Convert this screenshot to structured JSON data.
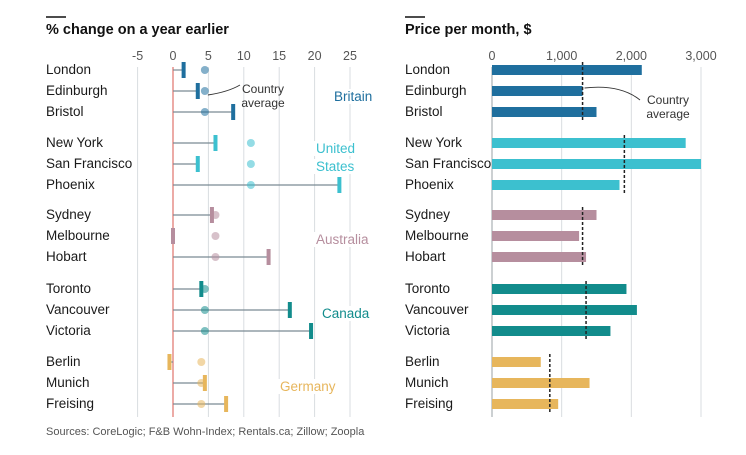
{
  "chart_data": [
    {
      "type": "dot-range",
      "title": "% change on a year earlier",
      "xlim": [
        -5,
        25
      ],
      "ticks": [
        -5,
        0,
        5,
        10,
        15,
        20,
        25
      ],
      "annotation": "Country average",
      "groups": [
        {
          "name": "Britain",
          "color": "#1f6f9e",
          "avg": 4.5,
          "cities": [
            {
              "name": "London",
              "value": 1.5
            },
            {
              "name": "Edinburgh",
              "value": 3.5
            },
            {
              "name": "Bristol",
              "value": 8.5
            }
          ]
        },
        {
          "name": "United States",
          "color": "#3cc0cf",
          "avg": 11.0,
          "cities": [
            {
              "name": "New York",
              "value": 6.0
            },
            {
              "name": "San Francisco",
              "value": 3.5
            },
            {
              "name": "Phoenix",
              "value": 23.5
            }
          ]
        },
        {
          "name": "Australia",
          "color": "#b68e9e",
          "avg": 6.0,
          "cities": [
            {
              "name": "Sydney",
              "value": 5.5
            },
            {
              "name": "Melbourne",
              "value": 0.0
            },
            {
              "name": "Hobart",
              "value": 13.5
            }
          ]
        },
        {
          "name": "Canada",
          "color": "#128c8c",
          "avg": 4.5,
          "cities": [
            {
              "name": "Toronto",
              "value": 4.0
            },
            {
              "name": "Vancouver",
              "value": 16.5
            },
            {
              "name": "Victoria",
              "value": 19.5
            }
          ]
        },
        {
          "name": "Germany",
          "color": "#e7b65c",
          "avg": 4.0,
          "cities": [
            {
              "name": "Berlin",
              "value": -0.5
            },
            {
              "name": "Munich",
              "value": 4.5
            },
            {
              "name": "Freising",
              "value": 7.5
            }
          ]
        }
      ]
    },
    {
      "type": "bar",
      "title": "Price per month, $",
      "xlim": [
        0,
        3000
      ],
      "ticks": [
        0,
        1000,
        2000,
        3000
      ],
      "tick_labels": [
        "0",
        "1,000",
        "2,000",
        "3,000"
      ],
      "annotation": "Country average",
      "groups": [
        {
          "name": "Britain",
          "color": "#1f6f9e",
          "avg": 1300,
          "cities": [
            {
              "name": "London",
              "value": 2150
            },
            {
              "name": "Edinburgh",
              "value": 1300
            },
            {
              "name": "Bristol",
              "value": 1500
            }
          ]
        },
        {
          "name": "United States",
          "color": "#3cc0cf",
          "avg": 1900,
          "cities": [
            {
              "name": "New York",
              "value": 2780
            },
            {
              "name": "San Francisco",
              "value": 3000
            },
            {
              "name": "Phoenix",
              "value": 1830
            }
          ]
        },
        {
          "name": "Australia",
          "color": "#b68e9e",
          "avg": 1300,
          "cities": [
            {
              "name": "Sydney",
              "value": 1500
            },
            {
              "name": "Melbourne",
              "value": 1250
            },
            {
              "name": "Hobart",
              "value": 1350
            }
          ]
        },
        {
          "name": "Canada",
          "color": "#128c8c",
          "avg": 1350,
          "cities": [
            {
              "name": "Toronto",
              "value": 1930
            },
            {
              "name": "Vancouver",
              "value": 2080
            },
            {
              "name": "Victoria",
              "value": 1700
            }
          ]
        },
        {
          "name": "Germany",
          "color": "#e7b65c",
          "avg": 830,
          "cities": [
            {
              "name": "Berlin",
              "value": 700
            },
            {
              "name": "Munich",
              "value": 1400
            },
            {
              "name": "Freising",
              "value": 950
            }
          ]
        }
      ]
    }
  ],
  "source": "Sources: CoreLogic; F&B Wohn-Index; Rentals.ca; Zillow; Zoopla"
}
